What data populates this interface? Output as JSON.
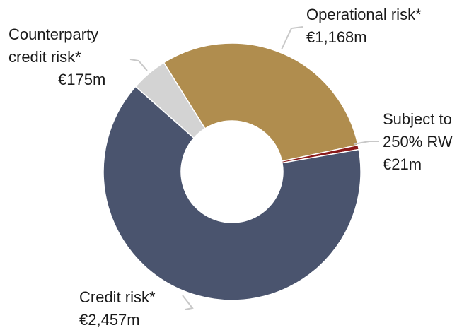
{
  "chart_data": {
    "type": "donut",
    "categories": [
      [
        "Operational risk*"
      ],
      [
        "Subject to",
        "250% RW"
      ],
      [
        "Credit risk*"
      ],
      [
        "Counterparty",
        "credit risk*"
      ]
    ],
    "values": [
      1168,
      21,
      2457,
      175
    ],
    "value_labels": [
      "€1,168m",
      "€21m",
      "€2,457m",
      "€175m"
    ],
    "colors": [
      "#b08d4e",
      "#8b1a1a",
      "#4a546e",
      "#d3d3d3"
    ]
  }
}
